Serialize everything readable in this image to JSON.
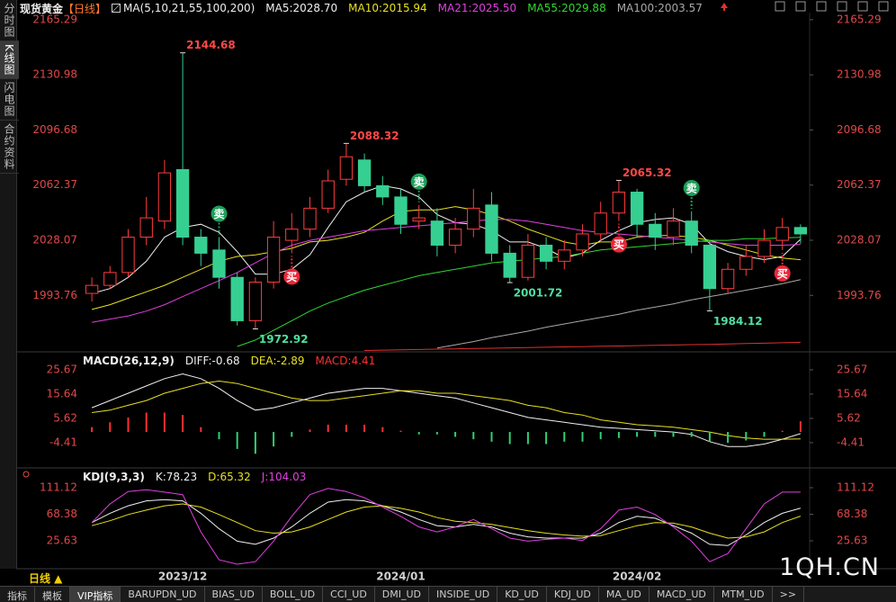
{
  "sidebar": {
    "items": [
      "分时图",
      "K线图",
      "闪电图",
      "合约资料"
    ],
    "active": 1
  },
  "period": "日线 ▲",
  "tabs": {
    "items": [
      "指标",
      "模板",
      "VIP指标",
      "BARUPDN_UD",
      "BIAS_UD",
      "BOLL_UD",
      "CCI_UD",
      "DMI_UD",
      "INSIDE_UD",
      "KD_UD",
      "KDJ_UD",
      "MA_UD",
      "MACD_UD",
      "MTM_UD",
      ">>"
    ],
    "active": 2
  },
  "watermark": "1QH.CN",
  "chart_data": [
    {
      "type": "candlestick",
      "title": "现货黄金",
      "subtitle": "【日线】",
      "indicator": "MA(5,10,21,55,100,200)",
      "up_color": "#ff3c3c",
      "down_color": "#36cf92",
      "categories": [
        null,
        null,
        null,
        null,
        null,
        "2023/12",
        null,
        null,
        null,
        null,
        null,
        null,
        null,
        null,
        null,
        null,
        null,
        "2024/01",
        null,
        null,
        null,
        null,
        null,
        null,
        null,
        null,
        null,
        null,
        null,
        null,
        "2024/02",
        null,
        null,
        null,
        null,
        null,
        null,
        null,
        null,
        null
      ],
      "open": [
        1995,
        2000,
        2008,
        2030,
        2040,
        2072,
        2030,
        2022,
        2005,
        1978,
        2002,
        2028,
        2035,
        2048,
        2066,
        2078,
        2062,
        2055,
        2040,
        2040,
        2025,
        2035,
        2050,
        2020,
        2005,
        2025,
        2015,
        2022,
        2032,
        2045,
        2058,
        2038,
        2030,
        2040,
        2025,
        1998,
        2010,
        2018,
        2028,
        2036
      ],
      "high": [
        2005,
        2012,
        2035,
        2055,
        2078,
        2144.68,
        2035,
        2030,
        2008,
        2005,
        2040,
        2045,
        2055,
        2072,
        2088.32,
        2082,
        2068,
        2060,
        2050,
        2048,
        2042,
        2060,
        2058,
        2025,
        2032,
        2030,
        2028,
        2038,
        2052,
        2065.32,
        2060,
        2045,
        2048,
        2046,
        2028,
        2014,
        2025,
        2035,
        2042,
        2038
      ],
      "low": [
        1990,
        1998,
        2005,
        2025,
        2035,
        2025,
        2012,
        1998,
        1975,
        1972.92,
        1998,
        2020,
        2030,
        2045,
        2062,
        2058,
        2050,
        2032,
        2035,
        2018,
        2020,
        2030,
        2015,
        2001.72,
        2003,
        2010,
        2010,
        2018,
        2028,
        2040,
        2030,
        2022,
        2025,
        2020,
        1984.12,
        1995,
        2006,
        2014,
        2022,
        2026
      ],
      "close": [
        2000,
        2008,
        2030,
        2042,
        2070,
        2030,
        2020,
        2005,
        1978,
        2002,
        2030,
        2035,
        2048,
        2065,
        2080,
        2062,
        2055,
        2038,
        2042,
        2025,
        2035,
        2048,
        2020,
        2005,
        2025,
        2015,
        2022,
        2032,
        2045,
        2058,
        2038,
        2030,
        2040,
        2025,
        1998,
        2010,
        2018,
        2028,
        2036,
        2032
      ],
      "signals": [
        null,
        null,
        null,
        null,
        null,
        null,
        null,
        {
          "label": "卖",
          "color": "#1f9e5a",
          "position": "above"
        },
        null,
        null,
        null,
        {
          "label": "买",
          "color": "#e8283a",
          "position": "below"
        },
        null,
        null,
        null,
        null,
        null,
        null,
        {
          "label": "卖",
          "color": "#1f9e5a",
          "position": "above"
        },
        null,
        null,
        null,
        null,
        null,
        null,
        null,
        null,
        null,
        null,
        {
          "label": "买",
          "color": "#e8283a",
          "position": "below"
        },
        null,
        null,
        null,
        {
          "label": "卖",
          "color": "#1f9e5a",
          "position": "above"
        },
        null,
        null,
        null,
        null,
        {
          "label": "买",
          "color": "#e8283a",
          "position": "below"
        },
        null
      ],
      "ylim": [
        1959.2,
        2169.7
      ],
      "yticks": [
        2165.29,
        2130.98,
        2096.68,
        2062.37,
        2028.07,
        1993.76
      ],
      "series": [
        {
          "name": "MA5",
          "color": "#f0f0f0",
          "legend_value": "2028.70",
          "values": [
            1995,
            1998,
            2005,
            2015,
            2030,
            2036,
            2038,
            2033,
            2021,
            2007,
            2007,
            2010,
            2019,
            2036,
            2052,
            2058,
            2062,
            2060,
            2055,
            2044,
            2039,
            2038,
            2034,
            2027,
            2027,
            2023,
            2017,
            2020,
            2028,
            2034,
            2039,
            2041,
            2042,
            2038,
            2026,
            2021,
            2018,
            2016,
            2018,
            2028.7
          ]
        },
        {
          "name": "MA10",
          "color": "#e8e020",
          "legend_value": "2015.94",
          "values": [
            1985,
            1988,
            1992,
            1996,
            2000,
            2005,
            2010,
            2015,
            2018,
            2019,
            2021,
            2023,
            2027,
            2028,
            2030,
            2033,
            2040,
            2046,
            2047,
            2047,
            2049,
            2047,
            2044,
            2040,
            2035,
            2031,
            2027,
            2025,
            2027,
            2027,
            2030,
            2031,
            2031,
            2030,
            2028,
            2025,
            2022,
            2019,
            2017,
            2015.94
          ]
        },
        {
          "name": "MA21",
          "color": "#e040e0",
          "legend_value": "2025.50",
          "values": [
            1977,
            1979,
            1981,
            1984,
            1988,
            1993,
            1998,
            2003,
            2008,
            2014,
            2020,
            2025,
            2028,
            2030,
            2032,
            2034,
            2035,
            2036,
            2037,
            2038,
            2039,
            2040,
            2041,
            2041,
            2040,
            2038,
            2036,
            2034,
            2033,
            2032,
            2031,
            2030,
            2029,
            2028,
            2027,
            2026,
            2025,
            2025,
            2025,
            2025.5
          ]
        },
        {
          "name": "MA55",
          "color": "#30d830",
          "legend_value": "2029.88",
          "values": [
            null,
            null,
            null,
            null,
            null,
            null,
            null,
            null,
            1962,
            1966,
            1972,
            1978,
            1984,
            1989,
            1993,
            1997,
            2000,
            2003,
            2006,
            2008,
            2010,
            2012,
            2014,
            2015,
            2016,
            2017,
            2018,
            2020,
            2022,
            2023,
            2024,
            2025,
            2026,
            2027,
            2028,
            2028,
            2029,
            2029,
            2029.5,
            2029.88
          ]
        },
        {
          "name": "MA100",
          "color": "#a8a8a8",
          "legend_value": "2003.57",
          "values": [
            null,
            null,
            null,
            null,
            null,
            null,
            null,
            null,
            null,
            null,
            null,
            null,
            null,
            null,
            null,
            null,
            null,
            null,
            null,
            1961,
            1963,
            1965,
            1967.5,
            1969.5,
            1971.5,
            1974,
            1976,
            1978,
            1980,
            1982,
            1984.5,
            1986.5,
            1988.5,
            1991,
            1993,
            1995,
            1997,
            1999,
            2001,
            2003.57
          ]
        },
        {
          "color": "#e03030",
          "values": [
            null,
            null,
            null,
            null,
            null,
            null,
            null,
            null,
            null,
            null,
            null,
            null,
            null,
            null,
            null,
            1959.5,
            1959.7,
            1959.9,
            1960.1,
            1960.3,
            1960.5,
            1960.7,
            1960.9,
            1961.1,
            1961.3,
            1961.5,
            1961.7,
            1961.9,
            1962.1,
            1962.3,
            1962.5,
            1962.7,
            1962.9,
            1963.1,
            1963.3,
            1963.5,
            1963.8,
            1964,
            1964.3,
            1964.6
          ]
        }
      ]
    },
    {
      "type": "macd",
      "title": "MACD(26,12,9)",
      "ylim": [
        -14.1,
        31.6
      ],
      "yticks": [
        25.67,
        15.64,
        5.62,
        -4.41
      ],
      "series": [
        {
          "name": "DIFF",
          "color": "#f0f0f0",
          "legend_value": "-0.68",
          "values": [
            10,
            13,
            16,
            19,
            22,
            24,
            22,
            18,
            13,
            9,
            10,
            12,
            14,
            16,
            17,
            18,
            18,
            17,
            16,
            15,
            14,
            12,
            10,
            8,
            6,
            5,
            4,
            3,
            2,
            1.5,
            1,
            0.5,
            0,
            -1,
            -4,
            -6,
            -6,
            -5,
            -3,
            -0.68
          ]
        },
        {
          "name": "DEA",
          "color": "#e8e020",
          "legend_value": "-2.89",
          "values": [
            8,
            9,
            11,
            13,
            16,
            18,
            20,
            21,
            20,
            18,
            16,
            14,
            13,
            13,
            14,
            15,
            16,
            17,
            17,
            16,
            16,
            15,
            14,
            13,
            11,
            10,
            8,
            7,
            5,
            4,
            3,
            2.5,
            2,
            1,
            0,
            -1.5,
            -2.5,
            -3,
            -3,
            -2.89
          ]
        },
        {
          "name": "MACD",
          "color": "#ff3030",
          "down_color": "#30d070",
          "style": "bar",
          "legend_value": "4.41",
          "values": [
            2,
            4,
            6,
            8,
            8,
            7,
            2,
            -3,
            -7,
            -9,
            -6,
            -2,
            1,
            3,
            3,
            3,
            2,
            0.5,
            -1,
            -1,
            -2,
            -3,
            -4,
            -5,
            -5,
            -5,
            -4,
            -4,
            -3,
            -2.5,
            -2,
            -2,
            -2,
            -2,
            -4,
            -4.5,
            -3.5,
            -2,
            0.5,
            4.41
          ]
        }
      ]
    },
    {
      "type": "kdj",
      "title": "KDJ(9,3,3)",
      "ylim": [
        -19.3,
        140.1
      ],
      "yticks": [
        111.12,
        68.38,
        25.63
      ],
      "series": [
        {
          "name": "K",
          "color": "#f0f0f0",
          "legend_value": "78.23",
          "values": [
            55,
            70,
            82,
            90,
            92,
            90,
            70,
            45,
            25,
            20,
            30,
            48,
            70,
            88,
            92,
            90,
            82,
            72,
            60,
            50,
            48,
            52,
            48,
            38,
            32,
            30,
            30,
            30,
            38,
            55,
            65,
            62,
            50,
            38,
            20,
            18,
            35,
            55,
            70,
            78.23
          ]
        },
        {
          "name": "D",
          "color": "#e8e020",
          "legend_value": "65.32",
          "values": [
            50,
            58,
            68,
            75,
            82,
            85,
            80,
            68,
            55,
            42,
            38,
            40,
            48,
            60,
            72,
            80,
            82,
            78,
            72,
            63,
            57,
            55,
            52,
            47,
            42,
            38,
            35,
            33,
            34,
            42,
            50,
            55,
            54,
            48,
            38,
            30,
            32,
            40,
            55,
            65.32
          ]
        },
        {
          "name": "J",
          "color": "#e040e0",
          "legend_value": "104.03",
          "values": [
            55,
            85,
            105,
            108,
            104,
            100,
            40,
            -5,
            -12,
            -8,
            25,
            65,
            100,
            110,
            105,
            95,
            80,
            65,
            48,
            40,
            48,
            60,
            45,
            30,
            25,
            28,
            30,
            26,
            45,
            75,
            80,
            68,
            48,
            25,
            -8,
            5,
            45,
            85,
            104,
            104.03
          ]
        }
      ]
    }
  ]
}
